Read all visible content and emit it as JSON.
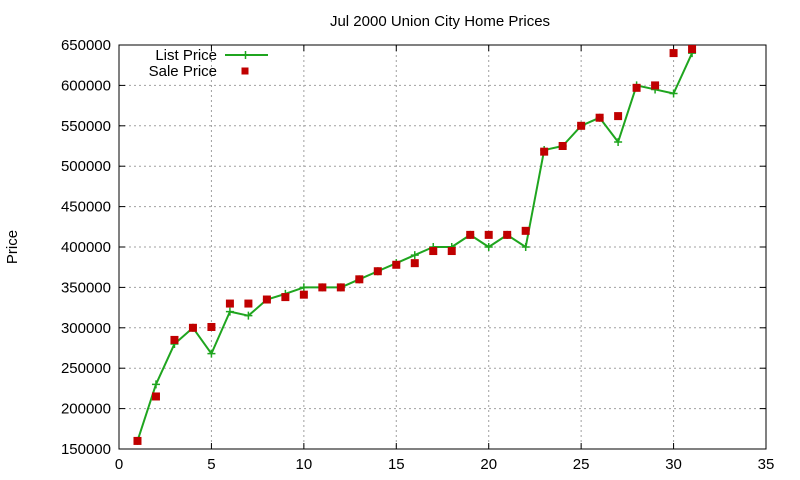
{
  "chart_data": {
    "type": "line",
    "title": "Jul 2000 Union City Home Prices",
    "xlabel": "",
    "ylabel": "Price",
    "xlim": [
      0,
      35
    ],
    "ylim": [
      150000,
      650000
    ],
    "xticks": [
      0,
      5,
      10,
      15,
      20,
      25,
      30,
      35
    ],
    "yticks": [
      150000,
      200000,
      250000,
      300000,
      350000,
      400000,
      450000,
      500000,
      550000,
      600000,
      650000
    ],
    "grid": true,
    "legend_position": "top-left",
    "series": [
      {
        "name": "List Price",
        "style": "line-with-plus-markers",
        "color": "#1fa51f",
        "x": [
          1,
          2,
          3,
          4,
          5,
          6,
          7,
          8,
          9,
          10,
          11,
          12,
          13,
          14,
          15,
          16,
          17,
          18,
          19,
          20,
          21,
          22,
          23,
          24,
          25,
          26,
          27,
          28,
          29,
          30,
          31
        ],
        "y": [
          160000,
          230000,
          280000,
          300000,
          268000,
          320000,
          315000,
          335000,
          342000,
          350000,
          350000,
          350000,
          360000,
          370000,
          380000,
          390000,
          400000,
          400000,
          415000,
          400000,
          415000,
          400000,
          520000,
          525000,
          550000,
          560000,
          530000,
          600000,
          595000,
          590000,
          640000
        ]
      },
      {
        "name": "Sale Price",
        "style": "square-markers",
        "color": "#c00000",
        "x": [
          1,
          2,
          3,
          4,
          5,
          6,
          7,
          8,
          9,
          10,
          11,
          12,
          13,
          14,
          15,
          16,
          17,
          18,
          19,
          20,
          21,
          22,
          23,
          24,
          25,
          26,
          27,
          28,
          29,
          30,
          31
        ],
        "y": [
          160000,
          215000,
          285000,
          300000,
          301000,
          330000,
          330000,
          335000,
          338000,
          341000,
          350000,
          350000,
          360000,
          370000,
          378000,
          380000,
          395000,
          395000,
          415000,
          415000,
          415000,
          420000,
          518000,
          525000,
          550000,
          560000,
          562000,
          597000,
          600000,
          640000,
          645000
        ]
      }
    ]
  }
}
